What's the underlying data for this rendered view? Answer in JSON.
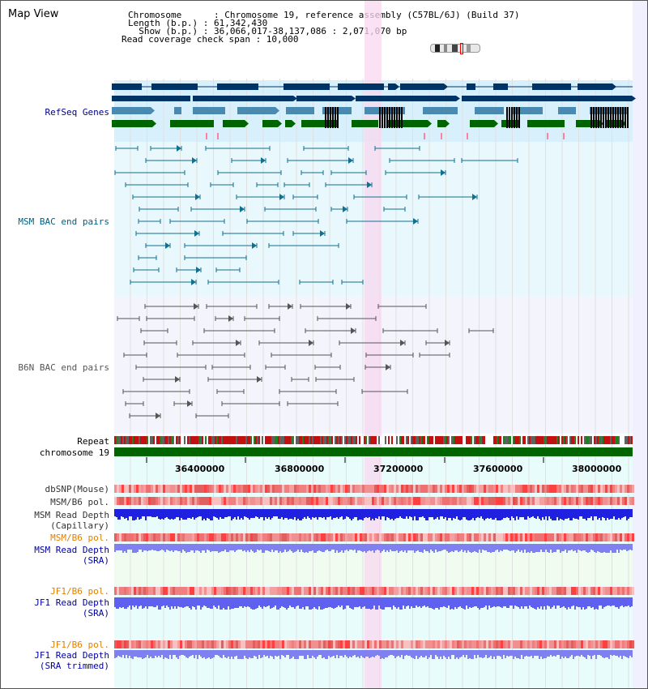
{
  "view_title": "Map View",
  "header": {
    "chromosome": "Chromosome      : Chromosome 19, reference assembly (C57BL/6J) (Build 37)",
    "length": "Length (b.p.) : 61,342,430",
    "show": "  Show (b.p.) : 36,066,017-38,137,086 : 2,071,070 bp",
    "span": "Read coverage check span : 10,000"
  },
  "tracks": {
    "refseq": "RefSeq Genes",
    "msm_bac": "MSM BAC end pairs",
    "b6n_bac": "B6N BAC end pairs",
    "repeat": "Repeat",
    "chromosome": "chromosome 19",
    "dbsnp": "dbSNP(Mouse)",
    "msm_b6_pol": "MSM/B6 pol.",
    "msm_read_depth": "MSM Read Depth",
    "capillary": "(Capillary)",
    "msm_b6_pol_sra": "MSM/B6 pol.",
    "msm_read_depth_sra": "MSM Read Depth",
    "sra1": "(SRA)",
    "jf1_b6_pol": "JF1/B6 pol.",
    "jf1_read_depth": "JF1 Read Depth",
    "sra2": "(SRA)",
    "jf1_b6_pol_trim": "JF1/B6 pol.",
    "jf1_read_depth_trim": "JF1 Read Depth",
    "sra_trimmed": "(SRA trimmed)"
  },
  "axis": {
    "ticks": [
      "36400000",
      "36800000",
      "37200000",
      "37600000",
      "38000000"
    ]
  },
  "colors": {
    "refseq_label": "#000080",
    "msm_bac_label": "#006080",
    "b6n_bac_label": "#555555",
    "orange_label": "#e08000",
    "blue_label": "#0000a0",
    "highlight": "#f8d8f0",
    "gene_dark": "#003366",
    "gene_mid": "#4a8ab0",
    "gene_green": "#006400"
  }
}
